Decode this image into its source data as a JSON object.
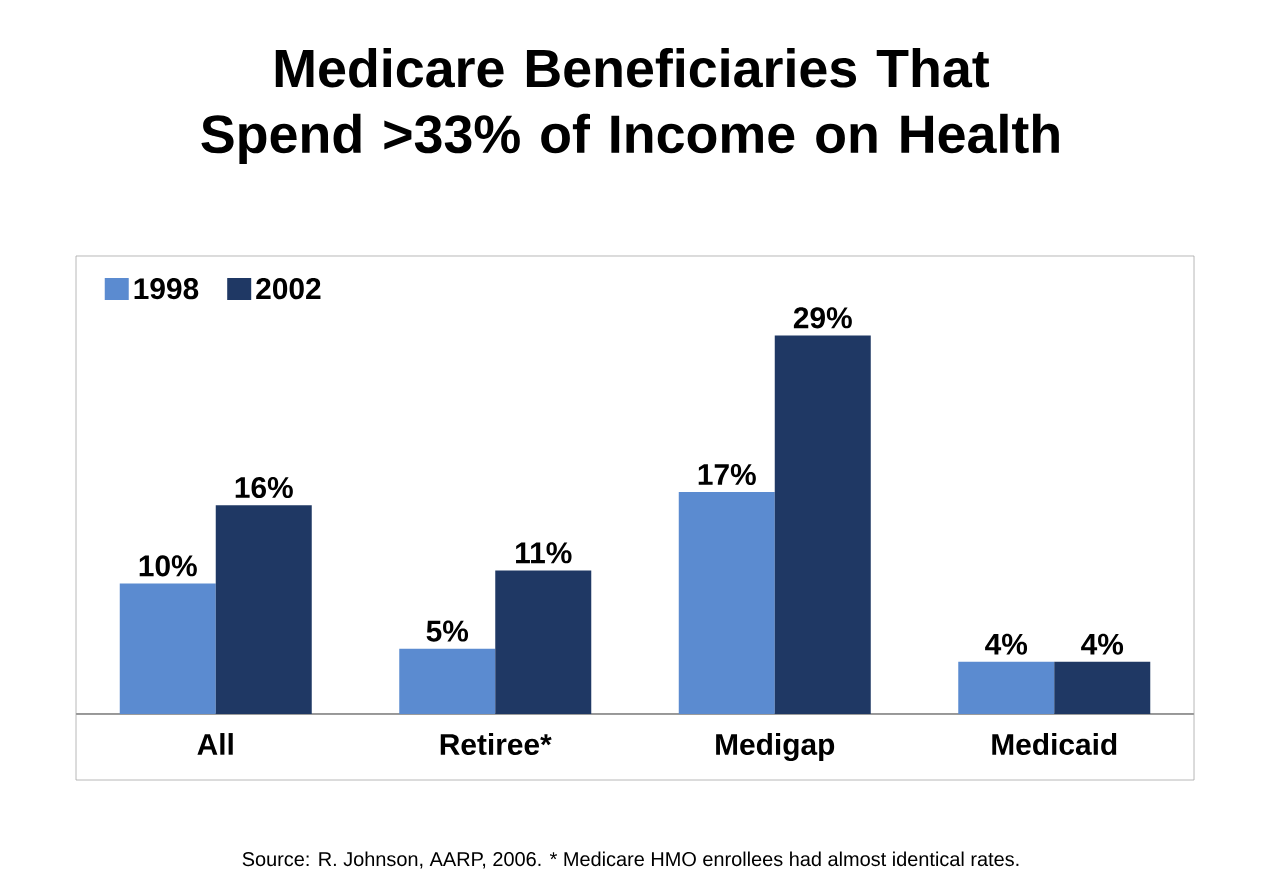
{
  "chart_data": {
    "type": "bar",
    "title": "Medicare Beneficiaries That Spend >33% of Income on Health",
    "categories": [
      "All",
      "Retiree*",
      "Medigap",
      "Medicaid"
    ],
    "series": [
      {
        "name": "1998",
        "color": "#5b8bd0",
        "values": [
          10,
          5,
          17,
          4
        ],
        "value_labels": [
          "10%",
          "5%",
          "17%",
          "4%"
        ]
      },
      {
        "name": "2002",
        "color": "#1f3864",
        "values": [
          16,
          11,
          29,
          4
        ],
        "value_labels": [
          "16%",
          "11%",
          "29%",
          "4%"
        ]
      }
    ],
    "legend": "top left",
    "annotations": [
      "Source: R. Johnson,  AARP, 2006. * Medicare HMO enrollees had almost identical rates."
    ]
  }
}
